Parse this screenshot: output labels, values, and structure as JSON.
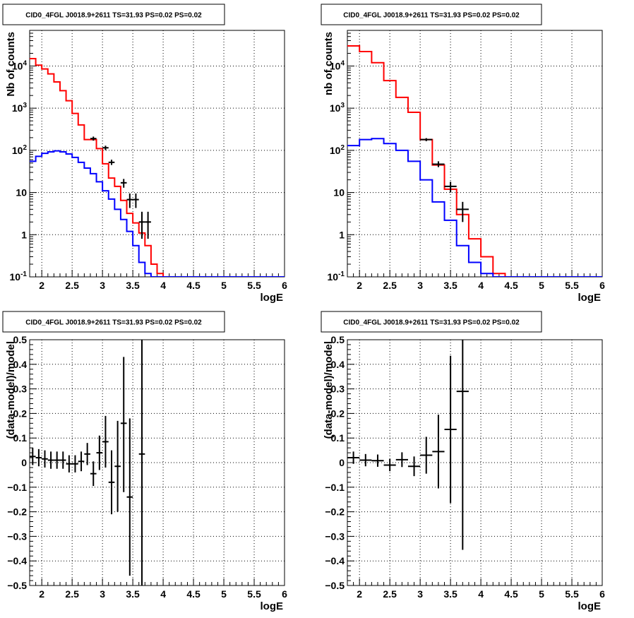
{
  "chart_data": [
    {
      "type": "step",
      "title": "CID0_4FGL J0018.9+2611 TS=31.93 PS=0.02 PS=0.02",
      "xlabel": "logE",
      "ylabel": "Nb of counts",
      "yscale": "log",
      "xlim": [
        1.8,
        6.0
      ],
      "ylim": [
        0.1,
        70000
      ],
      "x_ticks": [
        "2",
        "2.5",
        "3",
        "3.5",
        "4",
        "4.5",
        "5",
        "5.5",
        "6"
      ],
      "y_ticks": [
        "10^-1",
        "1",
        "10",
        "10^2",
        "10^3",
        "10^4"
      ],
      "grid": true,
      "bin_edges": [
        1.8,
        1.9,
        2.0,
        2.1,
        2.2,
        2.3,
        2.4,
        2.5,
        2.6,
        2.7,
        2.8,
        2.9,
        3.0,
        3.1,
        3.2,
        3.3,
        3.4,
        3.5,
        3.6,
        3.7,
        3.8,
        3.9,
        4.0,
        4.1,
        4.2,
        4.3,
        4.4,
        4.5,
        4.6,
        4.7,
        4.8,
        4.9,
        5.0,
        5.1,
        5.2,
        5.3,
        5.4,
        5.5,
        5.6,
        5.7,
        5.8,
        5.9,
        6.0
      ],
      "series": [
        {
          "color": "#ff0000",
          "values": [
            15000,
            10500,
            8500,
            6500,
            4200,
            2600,
            1500,
            750,
            400,
            180,
            180,
            110,
            48,
            22,
            14,
            6.5,
            3.2,
            1.9,
            1.1,
            0.55,
            0.2,
            0.12,
            0.1,
            0.1,
            0.1,
            0.1,
            0.1,
            0.1,
            0.1,
            0.1,
            0.1,
            0.1,
            0.1,
            0.1,
            0.1,
            0.1,
            0.1,
            0.1,
            0.1,
            0.1,
            0.1,
            0.1
          ]
        },
        {
          "color": "#0000ff",
          "values": [
            55,
            72,
            85,
            92,
            97,
            92,
            82,
            68,
            52,
            38,
            28,
            18,
            11,
            7,
            4,
            2.3,
            1.2,
            0.55,
            0.22,
            0.12,
            0.1,
            0.1,
            0.1,
            0.1,
            0.1,
            0.1,
            0.1,
            0.1,
            0.1,
            0.1,
            0.1,
            0.1,
            0.1,
            0.1,
            0.1,
            0.1,
            0.1,
            0.1,
            0.1,
            0.1,
            0.1,
            0.1
          ]
        }
      ],
      "data_points": [
        {
          "x": 2.85,
          "y": 190,
          "xerr": 0.05,
          "ylo": 170,
          "yhi": 212
        },
        {
          "x": 3.05,
          "y": 115,
          "xerr": 0.05,
          "ylo": 101,
          "yhi": 129
        },
        {
          "x": 3.15,
          "y": 52,
          "xerr": 0.05,
          "ylo": 45,
          "yhi": 60
        },
        {
          "x": 3.35,
          "y": 17,
          "xerr": 0.05,
          "ylo": 13,
          "yhi": 21
        },
        {
          "x": 3.45,
          "y": 6.8,
          "xerr": 0.05,
          "ylo": 4.3,
          "yhi": 9.5
        },
        {
          "x": 3.55,
          "y": 6.8,
          "xerr": 0.05,
          "ylo": 4.3,
          "yhi": 9.5
        },
        {
          "x": 3.65,
          "y": 2.0,
          "xerr": 0.05,
          "ylo": 0.8,
          "yhi": 3.5
        },
        {
          "x": 3.75,
          "y": 2.0,
          "xerr": 0.05,
          "ylo": 0.8,
          "yhi": 3.5
        }
      ]
    },
    {
      "type": "step",
      "title": "CID0_4FGL J0018.9+2611 TS=31.93 PS=0.02 PS=0.02",
      "xlabel": "logE",
      "ylabel": "nb of counts",
      "yscale": "log",
      "xlim": [
        1.8,
        6.0
      ],
      "ylim": [
        0.1,
        70000
      ],
      "x_ticks": [
        "2",
        "2.5",
        "3",
        "3.5",
        "4",
        "4.5",
        "5",
        "5.5",
        "6"
      ],
      "y_ticks": [
        "10^-1",
        "1",
        "10",
        "10^2",
        "10^3",
        "10^4"
      ],
      "grid": true,
      "bin_edges": [
        1.8,
        2.0,
        2.2,
        2.4,
        2.6,
        2.8,
        3.0,
        3.2,
        3.4,
        3.6,
        3.8,
        4.0,
        4.2,
        4.4,
        4.6,
        4.8,
        5.0,
        5.2,
        5.4,
        5.6,
        5.8,
        6.0
      ],
      "series": [
        {
          "color": "#ff0000",
          "values": [
            30000,
            22000,
            12000,
            4500,
            1800,
            800,
            180,
            45,
            12,
            3,
            0.8,
            0.3,
            0.12,
            0.1,
            0.1,
            0.1,
            0.1,
            0.1,
            0.1,
            0.1,
            0.1
          ]
        },
        {
          "color": "#0000ff",
          "values": [
            130,
            180,
            190,
            145,
            100,
            55,
            20,
            6,
            2.2,
            0.55,
            0.22,
            0.12,
            0.1,
            0.1,
            0.1,
            0.1,
            0.1,
            0.1,
            0.1,
            0.1,
            0.1
          ]
        }
      ],
      "data_points": [
        {
          "x": 3.1,
          "y": 180,
          "xerr": 0.1,
          "ylo": 165,
          "yhi": 195
        },
        {
          "x": 3.3,
          "y": 47,
          "xerr": 0.1,
          "ylo": 40,
          "yhi": 55
        },
        {
          "x": 3.5,
          "y": 14,
          "xerr": 0.1,
          "ylo": 10,
          "yhi": 18
        },
        {
          "x": 3.7,
          "y": 4,
          "xerr": 0.1,
          "ylo": 2,
          "yhi": 6
        }
      ]
    },
    {
      "type": "errorbar",
      "title": "CID0_4FGL J0018.9+2611 TS=31.93 PS=0.02 PS=0.02",
      "xlabel": "logE",
      "ylabel": "(data-model)/model",
      "xlim": [
        1.8,
        6.0
      ],
      "ylim": [
        -0.5,
        0.5
      ],
      "x_ticks": [
        "2",
        "2.5",
        "3",
        "3.5",
        "4",
        "4.5",
        "5",
        "5.5",
        "6"
      ],
      "y_ticks": [
        "-0.5",
        "-0.4",
        "-0.3",
        "-0.2",
        "-0.1",
        "0",
        "0.1",
        "0.2",
        "0.3",
        "0.4",
        "0.5"
      ],
      "grid": true,
      "points": [
        {
          "x": 1.85,
          "y": 0.025,
          "xerr": 0.05,
          "ylo": -0.01,
          "yhi": 0.06
        },
        {
          "x": 1.95,
          "y": 0.02,
          "xerr": 0.05,
          "ylo": -0.015,
          "yhi": 0.055
        },
        {
          "x": 2.05,
          "y": 0.015,
          "xerr": 0.05,
          "ylo": -0.02,
          "yhi": 0.05
        },
        {
          "x": 2.15,
          "y": 0.01,
          "xerr": 0.05,
          "ylo": -0.025,
          "yhi": 0.045
        },
        {
          "x": 2.25,
          "y": 0.01,
          "xerr": 0.05,
          "ylo": -0.025,
          "yhi": 0.045
        },
        {
          "x": 2.35,
          "y": 0.01,
          "xerr": 0.05,
          "ylo": -0.025,
          "yhi": 0.045
        },
        {
          "x": 2.45,
          "y": -0.005,
          "xerr": 0.05,
          "ylo": -0.04,
          "yhi": 0.03
        },
        {
          "x": 2.55,
          "y": -0.005,
          "xerr": 0.05,
          "ylo": -0.04,
          "yhi": 0.03
        },
        {
          "x": 2.65,
          "y": 0.005,
          "xerr": 0.05,
          "ylo": -0.035,
          "yhi": 0.045
        },
        {
          "x": 2.75,
          "y": 0.035,
          "xerr": 0.05,
          "ylo": -0.01,
          "yhi": 0.08
        },
        {
          "x": 2.85,
          "y": -0.045,
          "xerr": 0.05,
          "ylo": -0.095,
          "yhi": 0.005
        },
        {
          "x": 2.95,
          "y": 0.04,
          "xerr": 0.05,
          "ylo": -0.03,
          "yhi": 0.11
        },
        {
          "x": 3.05,
          "y": 0.085,
          "xerr": 0.05,
          "ylo": -0.02,
          "yhi": 0.19
        },
        {
          "x": 3.15,
          "y": -0.08,
          "xerr": 0.05,
          "ylo": -0.21,
          "yhi": 0.05
        },
        {
          "x": 3.25,
          "y": -0.015,
          "xerr": 0.05,
          "ylo": -0.2,
          "yhi": 0.17
        },
        {
          "x": 3.35,
          "y": 0.16,
          "xerr": 0.05,
          "ylo": -0.12,
          "yhi": 0.43
        },
        {
          "x": 3.45,
          "y": -0.14,
          "xerr": 0.05,
          "ylo": -0.46,
          "yhi": 0.18
        },
        {
          "x": 3.65,
          "y": 0.035,
          "xerr": 0.05,
          "ylo": -0.5,
          "yhi": 0.5
        }
      ]
    },
    {
      "type": "errorbar",
      "title": "CID0_4FGL J0018.9+2611 TS=31.93 PS=0.02 PS=0.02",
      "xlabel": "logE",
      "ylabel": "(data-model)/model",
      "xlim": [
        1.8,
        6.0
      ],
      "ylim": [
        -0.5,
        0.5
      ],
      "x_ticks": [
        "2",
        "2.5",
        "3",
        "3.5",
        "4",
        "4.5",
        "5",
        "5.5",
        "6"
      ],
      "y_ticks": [
        "-0.5",
        "-0.4",
        "-0.3",
        "-0.2",
        "-0.1",
        "0",
        "0.1",
        "0.2",
        "0.3",
        "0.4",
        "0.5"
      ],
      "grid": true,
      "points": [
        {
          "x": 1.9,
          "y": 0.02,
          "xerr": 0.1,
          "ylo": -0.005,
          "yhi": 0.045
        },
        {
          "x": 2.1,
          "y": 0.01,
          "xerr": 0.1,
          "ylo": -0.015,
          "yhi": 0.035
        },
        {
          "x": 2.3,
          "y": 0.008,
          "xerr": 0.1,
          "ylo": -0.017,
          "yhi": 0.033
        },
        {
          "x": 2.5,
          "y": -0.01,
          "xerr": 0.1,
          "ylo": -0.035,
          "yhi": 0.015
        },
        {
          "x": 2.7,
          "y": 0.012,
          "xerr": 0.1,
          "ylo": -0.018,
          "yhi": 0.042
        },
        {
          "x": 2.9,
          "y": -0.015,
          "xerr": 0.1,
          "ylo": -0.055,
          "yhi": 0.025
        },
        {
          "x": 3.1,
          "y": 0.03,
          "xerr": 0.1,
          "ylo": -0.045,
          "yhi": 0.105
        },
        {
          "x": 3.3,
          "y": 0.045,
          "xerr": 0.1,
          "ylo": -0.105,
          "yhi": 0.195
        },
        {
          "x": 3.5,
          "y": 0.135,
          "xerr": 0.1,
          "ylo": -0.165,
          "yhi": 0.435
        },
        {
          "x": 3.7,
          "y": 0.29,
          "xerr": 0.1,
          "ylo": -0.355,
          "yhi": 0.5
        }
      ]
    }
  ]
}
